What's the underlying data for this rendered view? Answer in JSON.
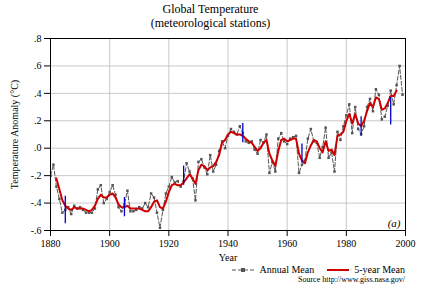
{
  "chart_data": {
    "type": "line",
    "title": "Global Temperature\n(meteorological stations)",
    "x_label": "Year",
    "y_label": "Temperature Anomaly (°C)",
    "annotation": "(a)",
    "source": "Source http://www.giss.nasa.gov/",
    "xlim": [
      1880,
      2000
    ],
    "ylim": [
      -0.6,
      0.8
    ],
    "xticks": [
      1880,
      1900,
      1920,
      1940,
      1960,
      1980,
      2000
    ],
    "yticks": [
      {
        "value": -0.6,
        "label": "-.6"
      },
      {
        "value": -0.4,
        "label": "-.4"
      },
      {
        "value": -0.2,
        "label": "-.2"
      },
      {
        "value": 0.0,
        "label": ".0"
      },
      {
        "value": 0.2,
        "label": ".2"
      },
      {
        "value": 0.4,
        "label": ".4"
      },
      {
        "value": 0.6,
        "label": ".6"
      },
      {
        "value": 0.8,
        "label": ".8"
      }
    ],
    "grid": true,
    "legend": "lower right",
    "background_color": "#ffffff",
    "grid_color": "#bbbbbb",
    "series": [
      {
        "name": "Annual Mean",
        "color": "#555555",
        "line_style": "dashed",
        "marker": "square",
        "x": [
          1880,
          1881,
          1882,
          1883,
          1884,
          1885,
          1886,
          1887,
          1888,
          1889,
          1890,
          1891,
          1892,
          1893,
          1894,
          1895,
          1896,
          1897,
          1898,
          1899,
          1900,
          1901,
          1902,
          1903,
          1904,
          1905,
          1906,
          1907,
          1908,
          1909,
          1910,
          1911,
          1912,
          1913,
          1914,
          1915,
          1916,
          1917,
          1918,
          1919,
          1920,
          1921,
          1922,
          1923,
          1924,
          1925,
          1926,
          1927,
          1928,
          1929,
          1930,
          1931,
          1932,
          1933,
          1934,
          1935,
          1936,
          1937,
          1938,
          1939,
          1940,
          1941,
          1942,
          1943,
          1944,
          1945,
          1946,
          1947,
          1948,
          1949,
          1950,
          1951,
          1952,
          1953,
          1954,
          1955,
          1956,
          1957,
          1958,
          1959,
          1960,
          1961,
          1962,
          1963,
          1964,
          1965,
          1966,
          1967,
          1968,
          1969,
          1970,
          1971,
          1972,
          1973,
          1974,
          1975,
          1976,
          1977,
          1978,
          1979,
          1980,
          1981,
          1982,
          1983,
          1984,
          1985,
          1986,
          1987,
          1988,
          1989,
          1990,
          1991,
          1992,
          1993,
          1994,
          1995,
          1996,
          1997,
          1998,
          1999
        ],
        "values": [
          -0.2,
          -0.12,
          -0.28,
          -0.37,
          -0.47,
          -0.45,
          -0.43,
          -0.48,
          -0.42,
          -0.44,
          -0.43,
          -0.45,
          -0.47,
          -0.47,
          -0.47,
          -0.44,
          -0.3,
          -0.27,
          -0.4,
          -0.37,
          -0.32,
          -0.27,
          -0.34,
          -0.43,
          -0.46,
          -0.41,
          -0.31,
          -0.46,
          -0.46,
          -0.45,
          -0.43,
          -0.44,
          -0.4,
          -0.43,
          -0.33,
          -0.36,
          -0.47,
          -0.58,
          -0.45,
          -0.33,
          -0.28,
          -0.21,
          -0.25,
          -0.24,
          -0.28,
          -0.24,
          -0.11,
          -0.17,
          -0.22,
          -0.38,
          -0.1,
          -0.08,
          -0.14,
          -0.19,
          -0.05,
          -0.17,
          -0.12,
          -0.02,
          0.05,
          -0.0,
          0.09,
          0.14,
          0.12,
          0.1,
          0.16,
          0.11,
          0.05,
          0.04,
          0.05,
          -0.01,
          -0.04,
          0.06,
          0.04,
          0.1,
          -0.18,
          -0.1,
          -0.17,
          0.07,
          0.11,
          0.05,
          0.03,
          0.07,
          0.08,
          0.09,
          -0.18,
          -0.12,
          -0.09,
          0.07,
          0.14,
          0.05,
          0.04,
          -0.07,
          0.01,
          0.15,
          -0.07,
          -0.03,
          -0.17,
          0.12,
          0.06,
          0.16,
          0.24,
          0.32,
          0.11,
          0.3,
          0.14,
          0.1,
          0.16,
          0.3,
          0.36,
          0.27,
          0.43,
          0.39,
          0.21,
          0.23,
          0.31,
          0.42,
          0.32,
          0.46,
          0.6,
          0.39
        ]
      },
      {
        "name": "5-year Mean",
        "color": "#cc0000",
        "line_style": "solid",
        "x": [
          1882,
          1883,
          1884,
          1885,
          1886,
          1887,
          1888,
          1889,
          1890,
          1891,
          1892,
          1893,
          1894,
          1895,
          1896,
          1897,
          1898,
          1899,
          1900,
          1901,
          1902,
          1903,
          1904,
          1905,
          1906,
          1907,
          1908,
          1909,
          1910,
          1911,
          1912,
          1913,
          1914,
          1915,
          1916,
          1917,
          1918,
          1919,
          1920,
          1921,
          1922,
          1923,
          1924,
          1925,
          1926,
          1927,
          1928,
          1929,
          1930,
          1931,
          1932,
          1933,
          1934,
          1935,
          1936,
          1937,
          1938,
          1939,
          1940,
          1941,
          1942,
          1943,
          1944,
          1945,
          1946,
          1947,
          1948,
          1949,
          1950,
          1951,
          1952,
          1953,
          1954,
          1955,
          1956,
          1957,
          1958,
          1959,
          1960,
          1961,
          1962,
          1963,
          1964,
          1965,
          1966,
          1967,
          1968,
          1969,
          1970,
          1971,
          1972,
          1973,
          1974,
          1975,
          1976,
          1977,
          1978,
          1979,
          1980,
          1981,
          1982,
          1983,
          1984,
          1985,
          1986,
          1987,
          1988,
          1989,
          1990,
          1991,
          1992,
          1993,
          1994,
          1995,
          1996,
          1997
        ],
        "values": [
          -0.22,
          -0.3,
          -0.38,
          -0.42,
          -0.44,
          -0.45,
          -0.43,
          -0.44,
          -0.44,
          -0.44,
          -0.45,
          -0.46,
          -0.45,
          -0.42,
          -0.37,
          -0.34,
          -0.36,
          -0.36,
          -0.34,
          -0.33,
          -0.36,
          -0.41,
          -0.43,
          -0.43,
          -0.42,
          -0.44,
          -0.44,
          -0.44,
          -0.44,
          -0.45,
          -0.46,
          -0.46,
          -0.43,
          -0.39,
          -0.38,
          -0.43,
          -0.44,
          -0.39,
          -0.32,
          -0.27,
          -0.26,
          -0.27,
          -0.27,
          -0.25,
          -0.22,
          -0.19,
          -0.22,
          -0.26,
          -0.16,
          -0.12,
          -0.13,
          -0.16,
          -0.14,
          -0.13,
          -0.1,
          -0.05,
          0.04,
          0.06,
          0.1,
          0.12,
          0.11,
          0.1,
          0.1,
          0.09,
          0.07,
          0.05,
          0.04,
          0.01,
          -0.02,
          -0.0,
          0.04,
          0.06,
          -0.04,
          -0.09,
          -0.13,
          -0.02,
          0.06,
          0.07,
          0.05,
          0.06,
          0.07,
          0.07,
          -0.04,
          -0.09,
          -0.11,
          -0.03,
          0.02,
          0.06,
          0.05,
          0.0,
          -0.03,
          0.05,
          -0.02,
          -0.01,
          -0.05,
          0.09,
          0.1,
          0.12,
          0.2,
          0.25,
          0.18,
          0.25,
          0.18,
          0.16,
          0.2,
          0.27,
          0.33,
          0.3,
          0.37,
          0.36,
          0.28,
          0.29,
          0.33,
          0.38,
          0.38,
          0.42
        ]
      }
    ],
    "error_bars": {
      "color": "#0000cc",
      "x": [
        1885,
        1905,
        1925,
        1945,
        1965,
        1985,
        1995
      ],
      "values": [
        -0.45,
        -0.43,
        -0.2,
        0.11,
        -0.04,
        0.16,
        0.27
      ],
      "errors": [
        0.1,
        0.07,
        0.07,
        0.07,
        0.07,
        0.07,
        0.1
      ]
    }
  }
}
